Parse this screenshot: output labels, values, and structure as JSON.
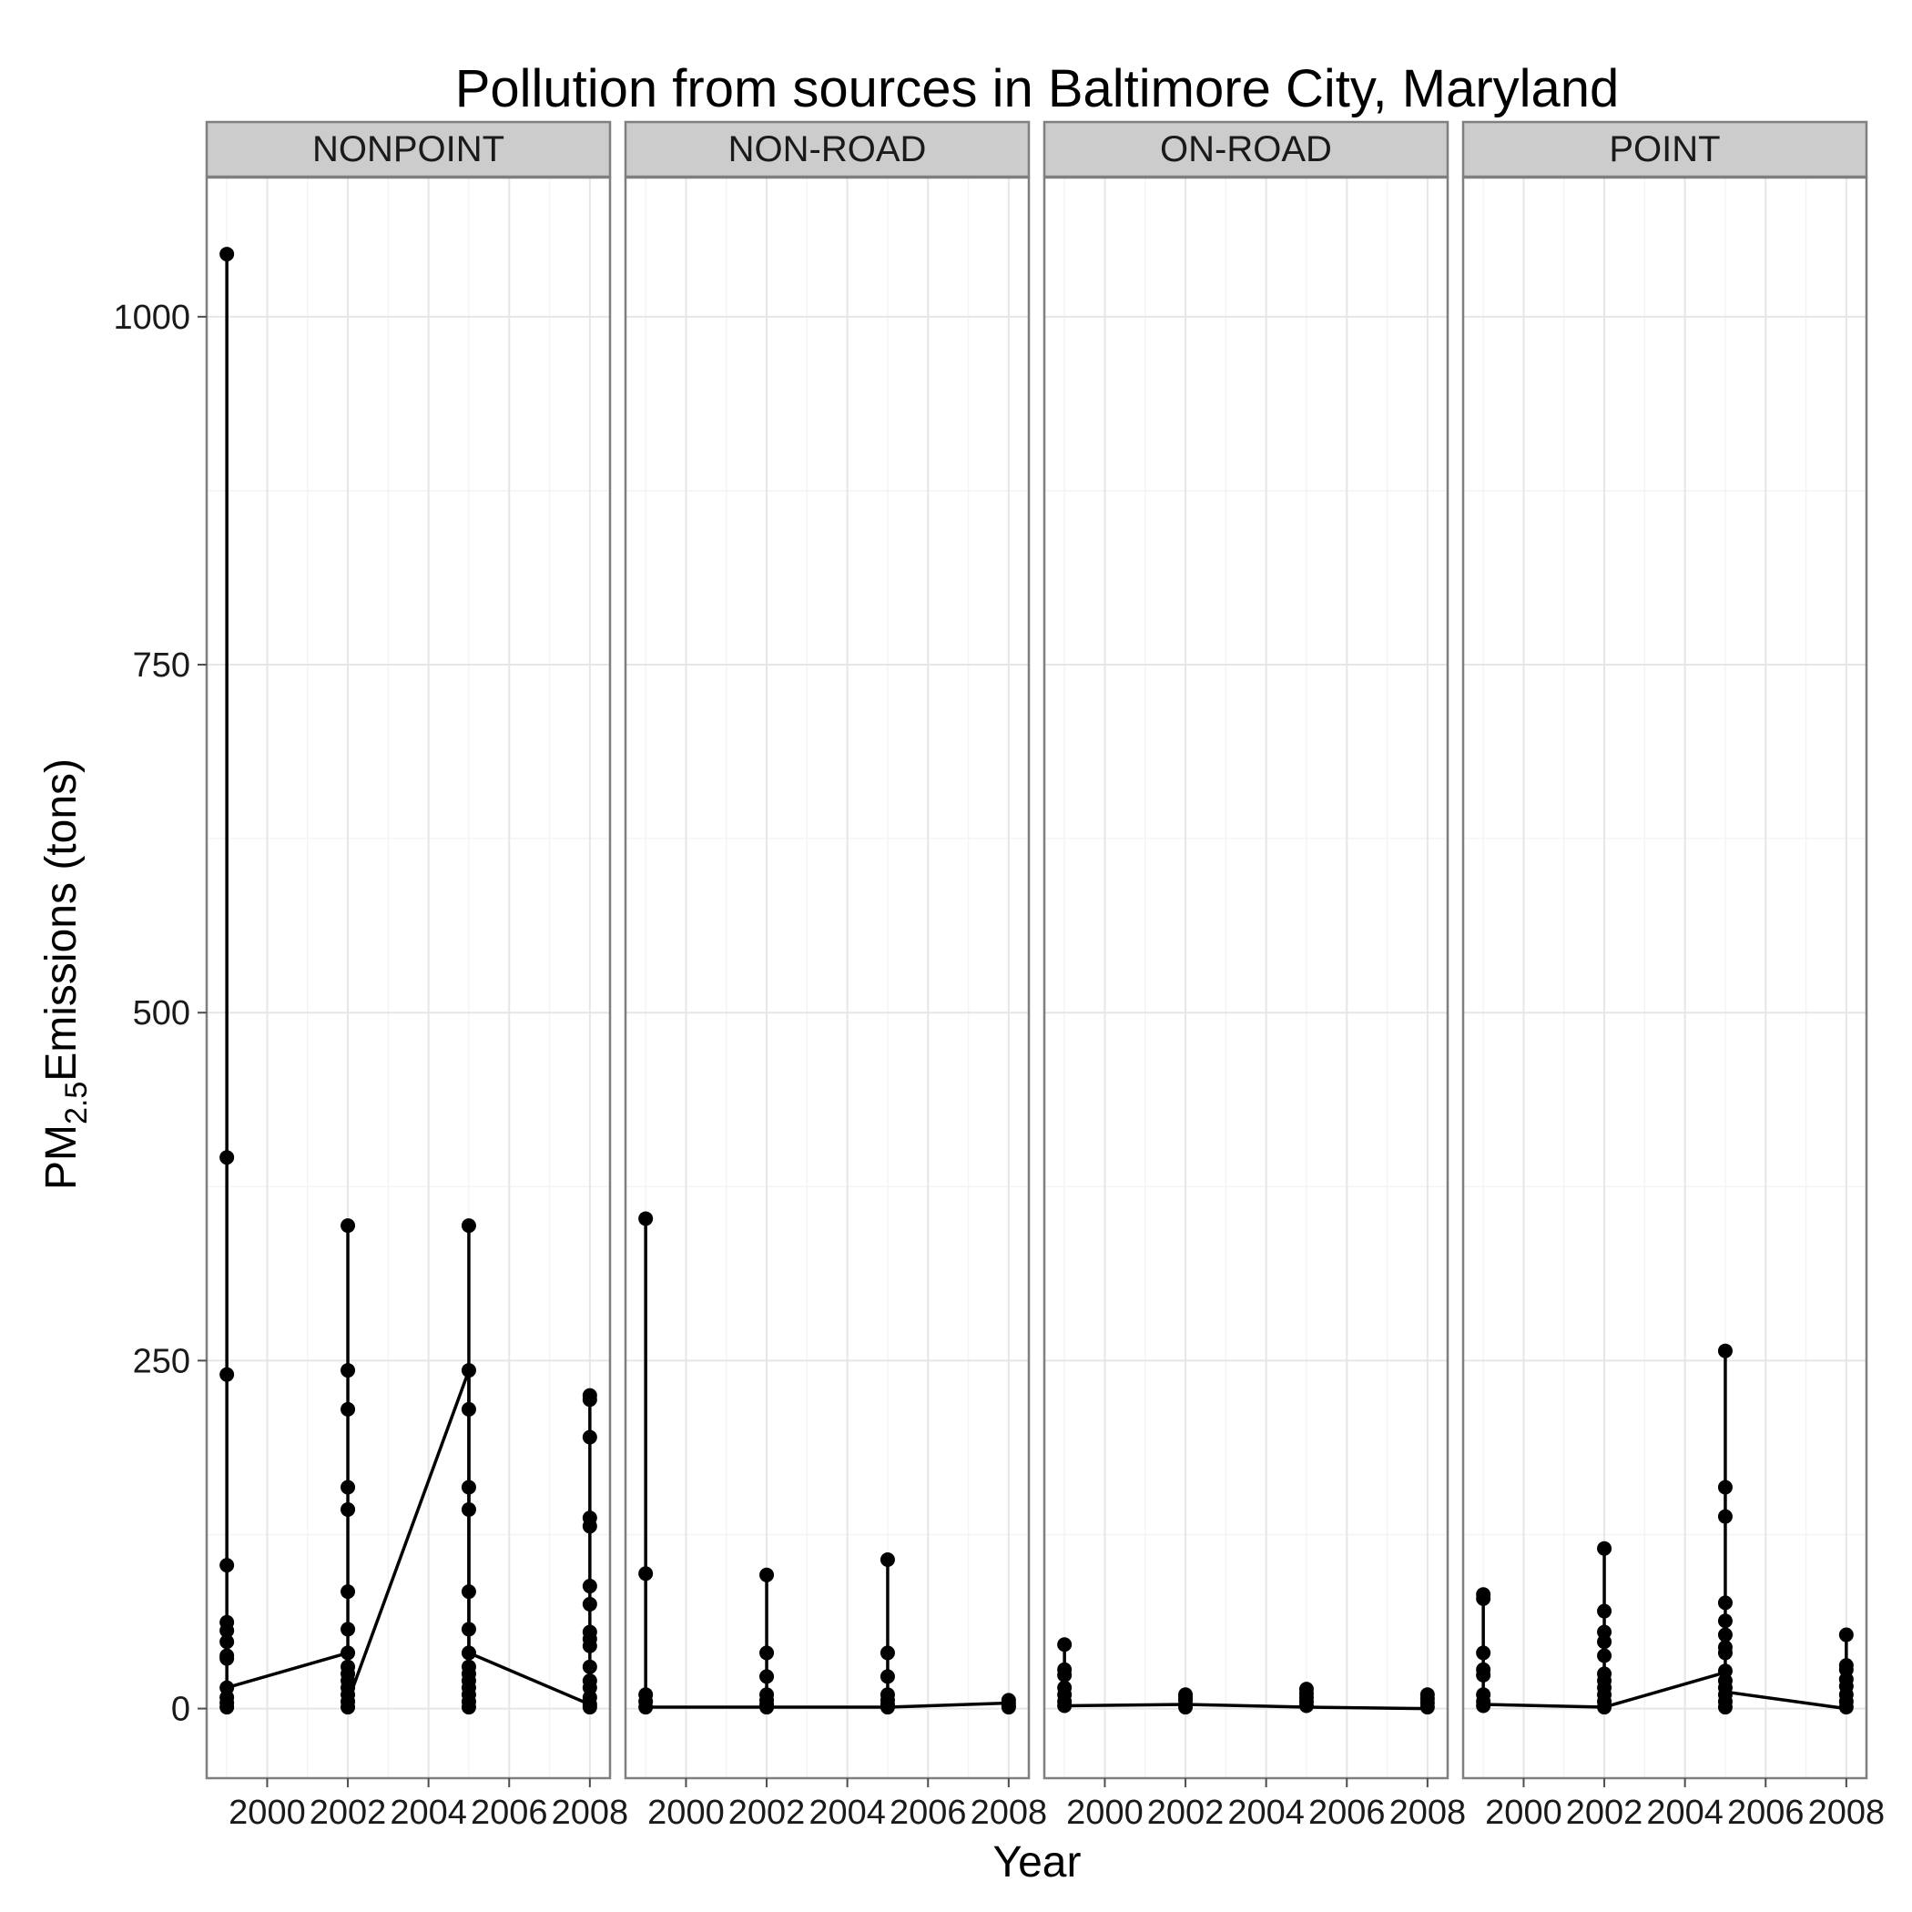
{
  "chart_data": {
    "type": "line",
    "title": "Pollution from sources in Baltimore City, Maryland",
    "xlabel": "Year",
    "ylabel": {
      "base": "PM",
      "sub": "2.5",
      "rest": "Emissions (tons)"
    },
    "xlim": [
      1998.5,
      2008.5
    ],
    "ylim": [
      -50,
      1100
    ],
    "x_ticks": [
      2000,
      2002,
      2004,
      2006,
      2008
    ],
    "y_ticks": [
      0,
      250,
      500,
      750,
      1000
    ],
    "grid": true,
    "legend": "none",
    "panels": [
      {
        "name": "NONPOINT",
        "points": [
          {
            "x": 1999,
            "y": [
              1045,
              396,
              240,
              103,
              62,
              56,
              48,
              38,
              36,
              15,
              8,
              4,
              1
            ]
          },
          {
            "x": 2002,
            "y": [
              347,
              243,
              215,
              159,
              143,
              84,
              57,
              40,
              30,
              25,
              20,
              15,
              10,
              5,
              1
            ]
          },
          {
            "x": 2005,
            "y": [
              347,
              243,
              215,
              159,
              143,
              84,
              57,
              40,
              30,
              25,
              20,
              15,
              10,
              5,
              1
            ]
          },
          {
            "x": 2008,
            "y": [
              225,
              222,
              195,
              137,
              131,
              88,
              75,
              55,
              50,
              45,
              30,
              20,
              15,
              8,
              3,
              1
            ]
          }
        ],
        "line": [
          {
            "x": 1999,
            "y": 15
          },
          {
            "x": 2002,
            "y": 40
          },
          {
            "x": 2002,
            "y": 5
          },
          {
            "x": 2005,
            "y": 243
          },
          {
            "x": 2005,
            "y": 40
          },
          {
            "x": 2008,
            "y": 3
          }
        ]
      },
      {
        "name": "NON-ROAD",
        "points": [
          {
            "x": 1999,
            "y": [
              352,
              97,
              10,
              5,
              1
            ]
          },
          {
            "x": 2002,
            "y": [
              96,
              40,
              23,
              10,
              6,
              3,
              1
            ]
          },
          {
            "x": 2005,
            "y": [
              107,
              40,
              23,
              10,
              6,
              3,
              1
            ]
          },
          {
            "x": 2008,
            "y": [
              6,
              4,
              2,
              1
            ]
          }
        ],
        "line": [
          {
            "x": 1999,
            "y": 1
          },
          {
            "x": 2002,
            "y": 1
          },
          {
            "x": 2005,
            "y": 1
          },
          {
            "x": 2008,
            "y": 4
          }
        ]
      },
      {
        "name": "ON-ROAD",
        "points": [
          {
            "x": 1999,
            "y": [
              46,
              28,
              24,
              15,
              10,
              5,
              2
            ]
          },
          {
            "x": 2002,
            "y": [
              10,
              8,
              6,
              3,
              1
            ]
          },
          {
            "x": 2005,
            "y": [
              14,
              11,
              8,
              5,
              2
            ]
          },
          {
            "x": 2008,
            "y": [
              10,
              7,
              4,
              1
            ]
          }
        ],
        "line": [
          {
            "x": 1999,
            "y": 2
          },
          {
            "x": 2002,
            "y": 3
          },
          {
            "x": 2005,
            "y": 1
          },
          {
            "x": 2008,
            "y": 0
          }
        ]
      },
      {
        "name": "POINT",
        "points": [
          {
            "x": 1999,
            "y": [
              82,
              79,
              40,
              28,
              24,
              10,
              5,
              2
            ]
          },
          {
            "x": 2002,
            "y": [
              115,
              70,
              55,
              48,
              38,
              25,
              20,
              15,
              10,
              5,
              1
            ]
          },
          {
            "x": 2005,
            "y": [
              257,
              159,
              138,
              76,
              63,
              53,
              44,
              40,
              27,
              20,
              15,
              10,
              5,
              1
            ]
          },
          {
            "x": 2008,
            "y": [
              53,
              31,
              28,
              21,
              16,
              10,
              5,
              1
            ]
          }
        ],
        "line": [
          {
            "x": 1999,
            "y": 3
          },
          {
            "x": 2002,
            "y": 1
          },
          {
            "x": 2005,
            "y": 26
          },
          {
            "x": 2005,
            "y": 12
          },
          {
            "x": 2008,
            "y": 0
          }
        ]
      }
    ]
  }
}
